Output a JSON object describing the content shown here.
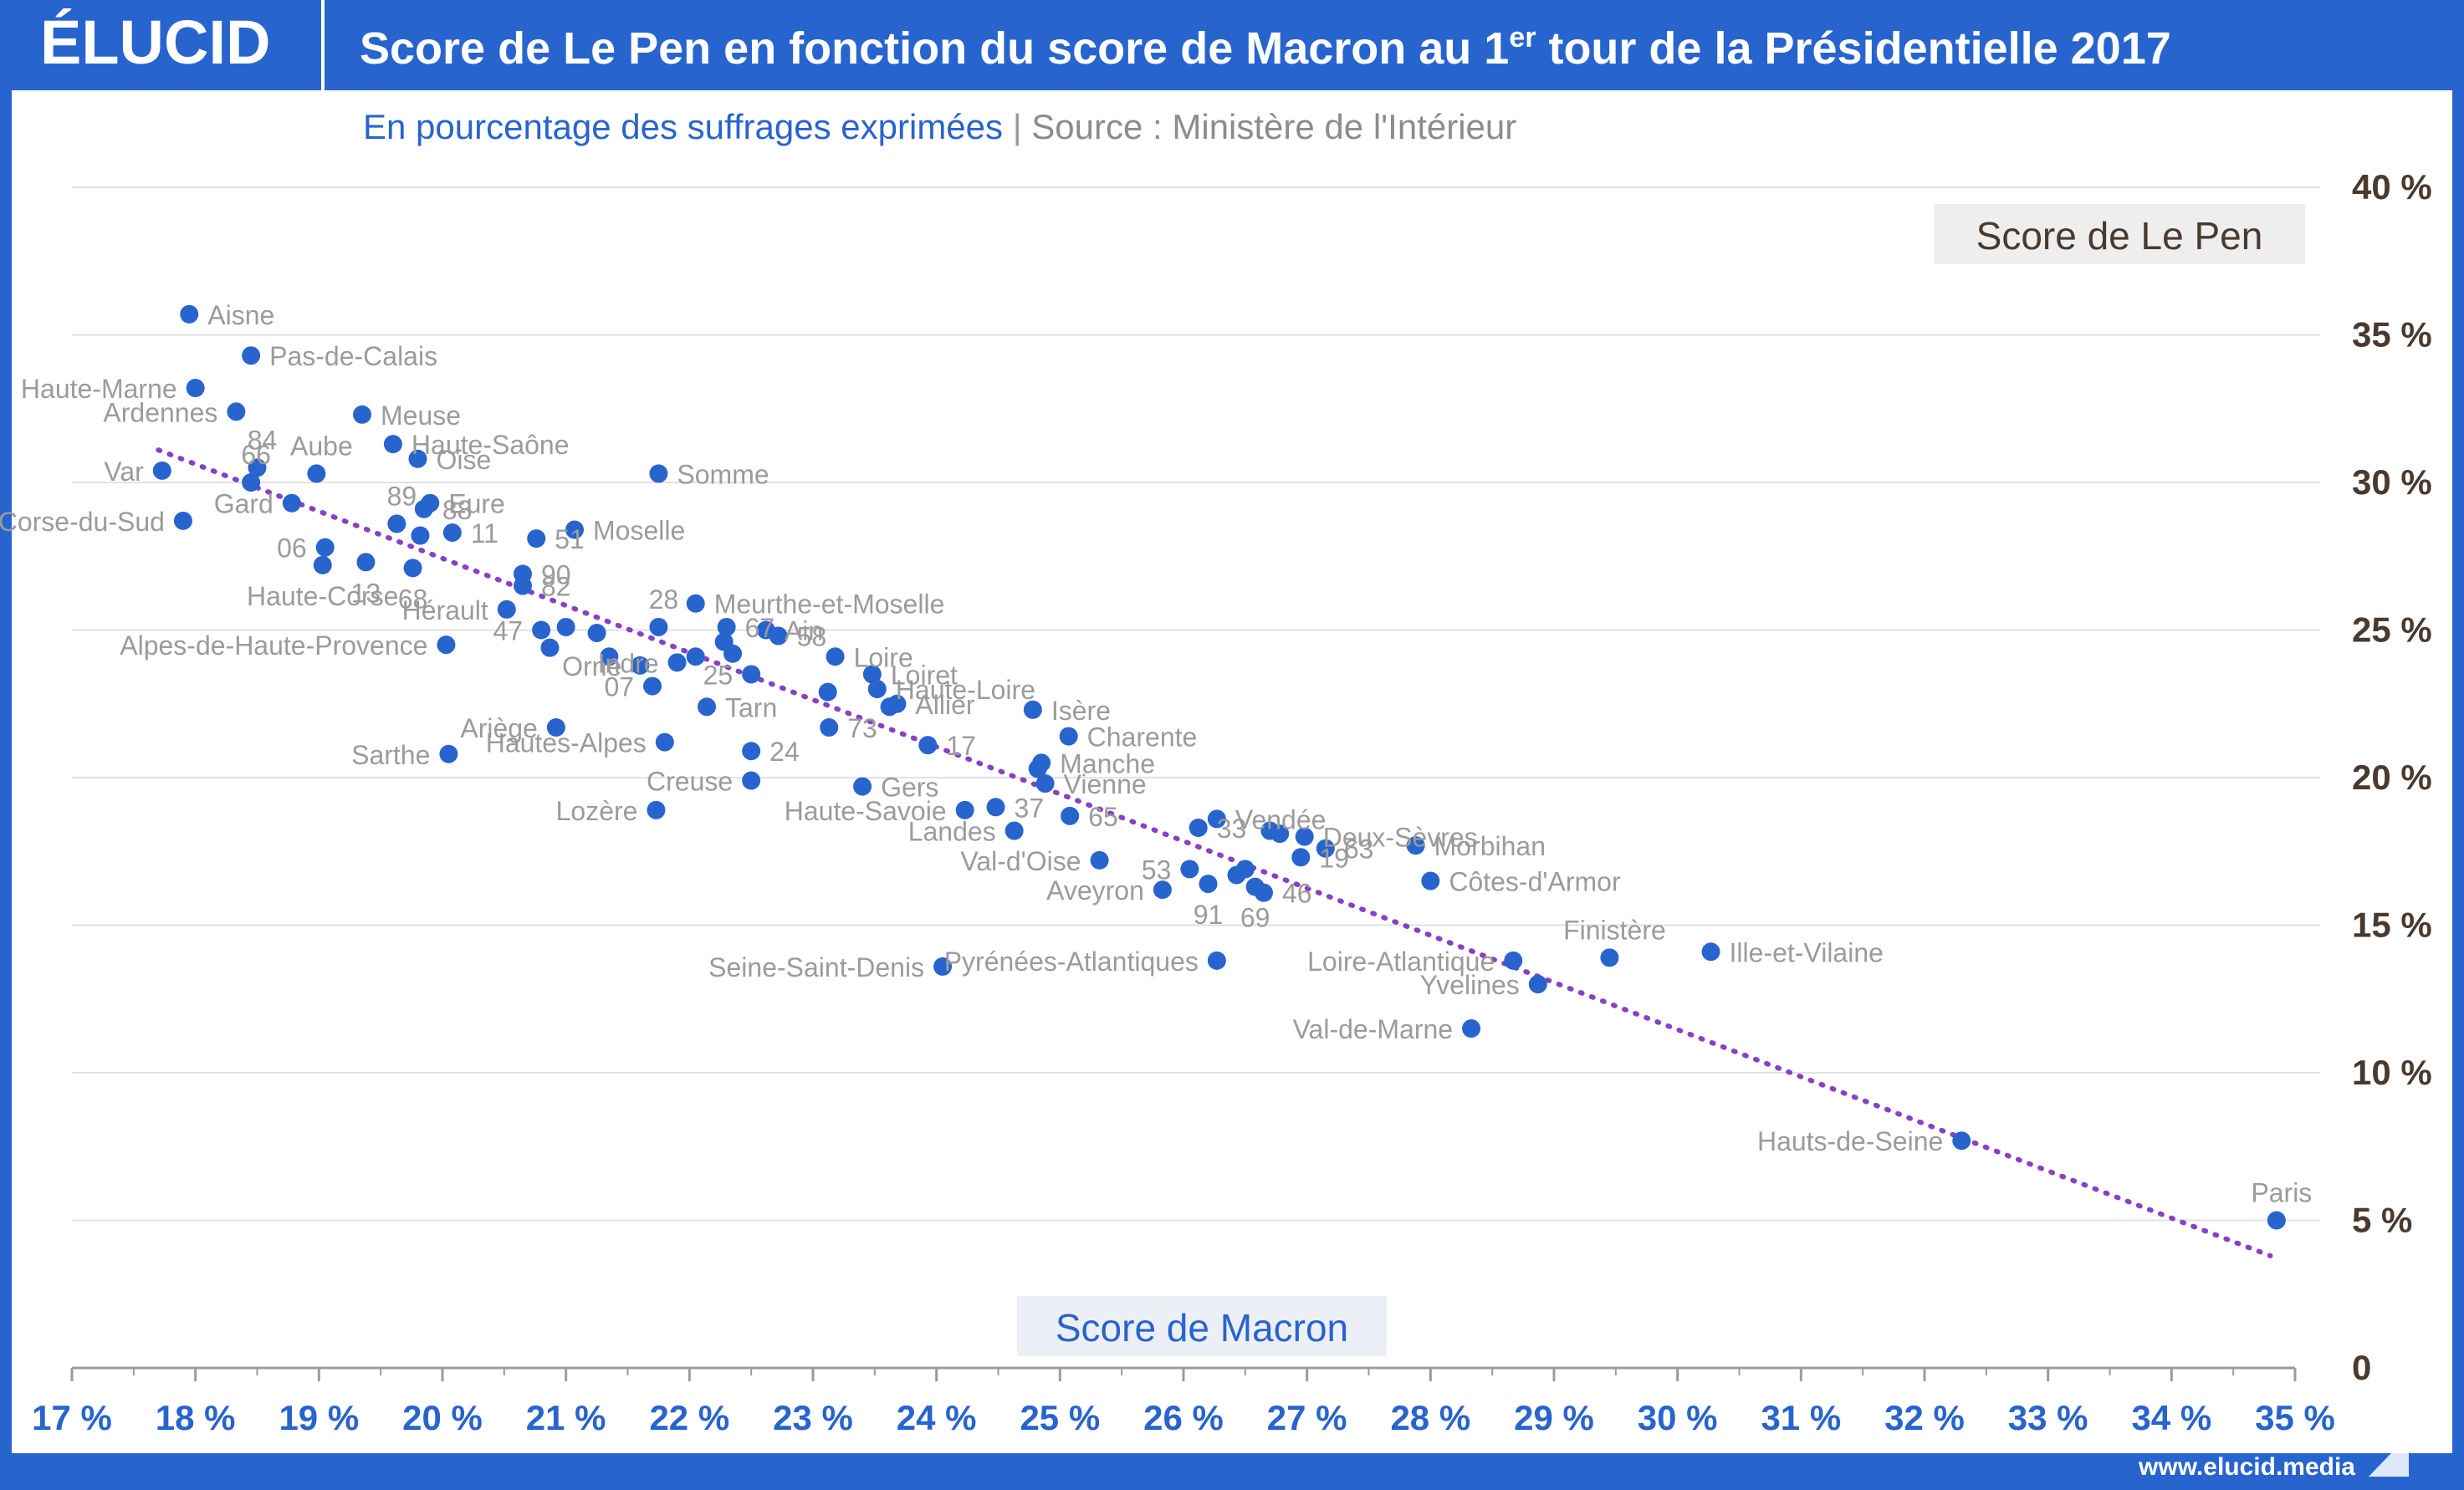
{
  "header": {
    "logo": "ÉLUCID",
    "title_main": "Score de Le Pen en fonction du score de Macron au 1",
    "title_sup": "er",
    "title_end": " tour de la Présidentielle 2017",
    "subtitle": "En pourcentage des suffrages exprimées",
    "separator": "|",
    "source": "Source : Ministère de l'Intérieur"
  },
  "footer": {
    "url": "www.elucid.media"
  },
  "colors": {
    "brand": "#2864CE",
    "point": "#2864CE",
    "trend": "#8A3FC4",
    "label": "#9B9B9B",
    "axis_right": "#4A3A2E",
    "ylabel_box": "#EEEEEE",
    "xlabel_box": "#EDEFF6"
  },
  "chart_data": {
    "type": "scatter",
    "xlabel": "Score de Macron",
    "ylabel": "Score de Le Pen",
    "xlim": [
      17,
      35
    ],
    "ylim": [
      0,
      40
    ],
    "x_ticks": [
      "17 %",
      "18 %",
      "19 %",
      "20 %",
      "21 %",
      "22 %",
      "23 %",
      "24 %",
      "25 %",
      "26 %",
      "27 %",
      "28 %",
      "29 %",
      "30 %",
      "31 %",
      "32 %",
      "33 %",
      "34 %",
      "35 %"
    ],
    "y_ticks": [
      "0",
      "5 %",
      "10 %",
      "15 %",
      "20 %",
      "25 %",
      "30 %",
      "35 %",
      "40 %"
    ],
    "grid": "horizontal",
    "trend_line": {
      "from": [
        17.7,
        31.1
      ],
      "to": [
        34.8,
        3.8
      ]
    },
    "points": [
      {
        "label": "Aisne",
        "x": 17.95,
        "y": 35.7
      },
      {
        "label": "Pas-de-Calais",
        "x": 18.45,
        "y": 34.3
      },
      {
        "label": "Haute-Marne",
        "x": 18.0,
        "y": 33.2
      },
      {
        "label": "Ardennes",
        "x": 18.33,
        "y": 32.4
      },
      {
        "label": "Meuse",
        "x": 19.35,
        "y": 32.3
      },
      {
        "label": "Haute-Saône",
        "x": 19.6,
        "y": 31.3
      },
      {
        "label": "Oise",
        "x": 19.8,
        "y": 30.8
      },
      {
        "label": "84",
        "x": 18.5,
        "y": 30.5
      },
      {
        "label": "Var",
        "x": 17.73,
        "y": 30.4
      },
      {
        "label": "Aube",
        "x": 18.98,
        "y": 30.3
      },
      {
        "label": "Somme",
        "x": 21.75,
        "y": 30.3
      },
      {
        "label": "66",
        "x": 18.45,
        "y": 30.0
      },
      {
        "label": "Eure",
        "x": 19.9,
        "y": 29.3
      },
      {
        "label": "Gard",
        "x": 18.78,
        "y": 29.3
      },
      {
        "label": "88",
        "x": 19.85,
        "y": 29.1
      },
      {
        "label": "89",
        "x": 19.63,
        "y": 28.6
      },
      {
        "label": "Corse-du-Sud",
        "x": 17.9,
        "y": 28.7
      },
      {
        "label": "Moselle",
        "x": 21.07,
        "y": 28.4
      },
      {
        "label": "11",
        "x": 20.08,
        "y": 28.3
      },
      {
        "label": "",
        "x": 19.82,
        "y": 28.2
      },
      {
        "label": "51",
        "x": 20.76,
        "y": 28.1
      },
      {
        "label": "06",
        "x": 19.05,
        "y": 27.8
      },
      {
        "label": "13",
        "x": 19.38,
        "y": 27.3
      },
      {
        "label": "Haute-Corse",
        "x": 19.03,
        "y": 27.2
      },
      {
        "label": "68",
        "x": 19.76,
        "y": 27.1
      },
      {
        "label": "90",
        "x": 20.65,
        "y": 26.9
      },
      {
        "label": "82",
        "x": 20.65,
        "y": 26.5
      },
      {
        "label": "Meurthe-et-Moselle",
        "x": 22.05,
        "y": 25.9
      },
      {
        "label": "Hérault",
        "x": 20.52,
        "y": 25.7
      },
      {
        "label": "67",
        "x": 22.3,
        "y": 25.1
      },
      {
        "label": "28",
        "x": 21.75,
        "y": 25.1
      },
      {
        "label": "Ain",
        "x": 22.62,
        "y": 25.0
      },
      {
        "label": "47",
        "x": 20.8,
        "y": 25.0
      },
      {
        "label": "",
        "x": 21.0,
        "y": 25.1
      },
      {
        "label": "",
        "x": 21.25,
        "y": 24.9
      },
      {
        "label": "58",
        "x": 22.72,
        "y": 24.8
      },
      {
        "label": "Alpes-de-Haute-Provence",
        "x": 20.03,
        "y": 24.5
      },
      {
        "label": "",
        "x": 20.87,
        "y": 24.4
      },
      {
        "label": "",
        "x": 22.28,
        "y": 24.6
      },
      {
        "label": "",
        "x": 22.35,
        "y": 24.2
      },
      {
        "label": "Loire",
        "x": 23.18,
        "y": 24.1
      },
      {
        "label": "",
        "x": 21.35,
        "y": 24.1
      },
      {
        "label": "",
        "x": 22.05,
        "y": 24.1
      },
      {
        "label": "Indre",
        "x": 21.9,
        "y": 23.9
      },
      {
        "label": "Orne",
        "x": 21.6,
        "y": 23.8
      },
      {
        "label": "Loiret",
        "x": 23.48,
        "y": 23.5
      },
      {
        "label": "25",
        "x": 22.5,
        "y": 23.5
      },
      {
        "label": "Haute-Loire",
        "x": 23.52,
        "y": 23.0
      },
      {
        "label": "07",
        "x": 21.7,
        "y": 23.1
      },
      {
        "label": "",
        "x": 23.12,
        "y": 22.9
      },
      {
        "label": "Allier",
        "x": 23.68,
        "y": 22.5
      },
      {
        "label": "",
        "x": 23.62,
        "y": 22.4
      },
      {
        "label": "Tarn",
        "x": 22.14,
        "y": 22.4
      },
      {
        "label": "Isère",
        "x": 24.78,
        "y": 22.3
      },
      {
        "label": "Ariège",
        "x": 20.92,
        "y": 21.7
      },
      {
        "label": "73",
        "x": 23.13,
        "y": 21.7
      },
      {
        "label": "Charente",
        "x": 25.07,
        "y": 21.4
      },
      {
        "label": "Hautes-Alpes",
        "x": 21.8,
        "y": 21.2
      },
      {
        "label": "17",
        "x": 23.93,
        "y": 21.1
      },
      {
        "label": "24",
        "x": 22.5,
        "y": 20.9
      },
      {
        "label": "Sarthe",
        "x": 20.05,
        "y": 20.8
      },
      {
        "label": "Manche",
        "x": 24.85,
        "y": 20.5
      },
      {
        "label": "",
        "x": 24.82,
        "y": 20.3
      },
      {
        "label": "Creuse",
        "x": 22.5,
        "y": 19.9
      },
      {
        "label": "Vienne",
        "x": 24.88,
        "y": 19.8
      },
      {
        "label": "Gers",
        "x": 23.4,
        "y": 19.7
      },
      {
        "label": "37",
        "x": 24.48,
        "y": 19.0
      },
      {
        "label": "Haute-Savoie",
        "x": 24.23,
        "y": 18.9
      },
      {
        "label": "Lozère",
        "x": 21.73,
        "y": 18.9
      },
      {
        "label": "65",
        "x": 25.08,
        "y": 18.7
      },
      {
        "label": "Vendée",
        "x": 26.27,
        "y": 18.6
      },
      {
        "label": "33",
        "x": 26.12,
        "y": 18.3
      },
      {
        "label": "",
        "x": 26.7,
        "y": 18.2
      },
      {
        "label": "Landes",
        "x": 24.63,
        "y": 18.2
      },
      {
        "label": "Deux-Sèvres",
        "x": 26.98,
        "y": 18.0
      },
      {
        "label": "",
        "x": 26.78,
        "y": 18.1
      },
      {
        "label": "Morbihan",
        "x": 27.88,
        "y": 17.7
      },
      {
        "label": "63",
        "x": 27.15,
        "y": 17.6
      },
      {
        "label": "19",
        "x": 26.95,
        "y": 17.3
      },
      {
        "label": "Val-d'Oise",
        "x": 25.32,
        "y": 17.2
      },
      {
        "label": "53",
        "x": 26.05,
        "y": 16.9
      },
      {
        "label": "",
        "x": 26.5,
        "y": 16.9
      },
      {
        "label": "",
        "x": 26.43,
        "y": 16.7
      },
      {
        "label": "Côtes-d'Armor",
        "x": 28.0,
        "y": 16.5
      },
      {
        "label": "91",
        "x": 26.2,
        "y": 16.4
      },
      {
        "label": "69",
        "x": 26.58,
        "y": 16.3
      },
      {
        "label": "46",
        "x": 26.65,
        "y": 16.1
      },
      {
        "label": "Aveyron",
        "x": 25.83,
        "y": 16.2
      },
      {
        "label": "Ille-et-Vilaine",
        "x": 30.27,
        "y": 14.1
      },
      {
        "label": "Finistère",
        "x": 29.45,
        "y": 13.9
      },
      {
        "label": "Loire-Atlantique",
        "x": 28.67,
        "y": 13.8
      },
      {
        "label": "Pyrénées-Atlantiques",
        "x": 26.27,
        "y": 13.8
      },
      {
        "label": "Seine-Saint-Denis",
        "x": 24.05,
        "y": 13.6
      },
      {
        "label": "Yvelines",
        "x": 28.87,
        "y": 13.0
      },
      {
        "label": "Val-de-Marne",
        "x": 28.33,
        "y": 11.5
      },
      {
        "label": "Hauts-de-Seine",
        "x": 32.3,
        "y": 7.7
      },
      {
        "label": "Paris",
        "x": 34.85,
        "y": 5.0
      }
    ]
  }
}
